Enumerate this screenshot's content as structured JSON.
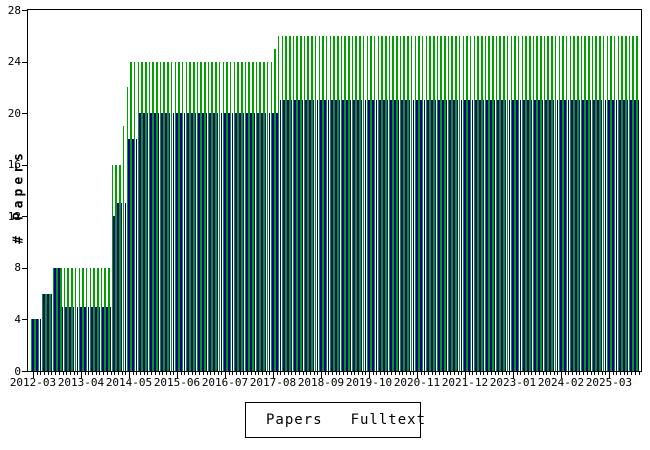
{
  "chart_data": {
    "type": "bar",
    "title": "",
    "ylabel": "# Papers",
    "ylim": [
      0,
      28
    ],
    "yticks": [
      0,
      4,
      8,
      12,
      16,
      20,
      24,
      28
    ],
    "x_unit": "month",
    "x_start": "2012-03",
    "x_end": "2025-11",
    "x_months_per_tick": 13,
    "x_tick_labels": [
      "2012-03",
      "2013-04",
      "2014-05",
      "2015-06",
      "2016-07",
      "2017-08",
      "2018-09",
      "2019-10",
      "2020-11",
      "2021-12",
      "2023-01",
      "2024-02",
      "2025-03"
    ],
    "grid": false,
    "legend_position": "bottom",
    "colors": {
      "papers": "#00a000",
      "fulltext": "#000099",
      "axis": "#000000",
      "background": "#ffffff"
    },
    "series": [
      {
        "name": "Papers",
        "color": "#00a000",
        "values": [
          4,
          4,
          4,
          6,
          6,
          6,
          8,
          8,
          8,
          8,
          8,
          8,
          8,
          8,
          8,
          8,
          8,
          8,
          8,
          8,
          8,
          8,
          16,
          16,
          16,
          19,
          22,
          24,
          24,
          24,
          24,
          24,
          24,
          24,
          24,
          24,
          24,
          24,
          24,
          24,
          24,
          24,
          24,
          24,
          24,
          24,
          24,
          24,
          24,
          24,
          24,
          24,
          24,
          24,
          24,
          24,
          24,
          24,
          24,
          24,
          24,
          24,
          24,
          24,
          24,
          24,
          25,
          26,
          26,
          26,
          26,
          26,
          26,
          26,
          26,
          26,
          26,
          26,
          26,
          26,
          26,
          26,
          26,
          26,
          26,
          26,
          26,
          26,
          26,
          26,
          26,
          26,
          26,
          26,
          26,
          26,
          26,
          26,
          26,
          26,
          26,
          26,
          26,
          26,
          26,
          26,
          26,
          26,
          26,
          26,
          26,
          26,
          26,
          26,
          26,
          26,
          26,
          26,
          26,
          26,
          26,
          26,
          26,
          26,
          26,
          26,
          26,
          26,
          26,
          26,
          26,
          26,
          26,
          26,
          26,
          26,
          26,
          26,
          26,
          26,
          26,
          26,
          26,
          26,
          26,
          26,
          26,
          26,
          26,
          26,
          26,
          26,
          26,
          26,
          26,
          26,
          26,
          26,
          26,
          26,
          26,
          26,
          26,
          26,
          26
        ]
      },
      {
        "name": "Fulltext",
        "color": "#000099",
        "values": [
          4,
          4,
          4,
          6,
          6,
          6,
          8,
          8,
          5,
          5,
          5,
          5,
          5,
          5,
          5,
          5,
          5,
          5,
          5,
          5,
          5,
          5,
          12,
          13,
          13,
          13,
          18,
          18,
          18,
          20,
          20,
          20,
          20,
          20,
          20,
          20,
          20,
          20,
          20,
          20,
          20,
          20,
          20,
          20,
          20,
          20,
          20,
          20,
          20,
          20,
          20,
          20,
          20,
          20,
          20,
          20,
          20,
          20,
          20,
          20,
          20,
          20,
          20,
          20,
          20,
          20,
          20,
          21,
          21,
          21,
          21,
          21,
          21,
          21,
          21,
          21,
          21,
          21,
          21,
          21,
          21,
          21,
          21,
          21,
          21,
          21,
          21,
          21,
          21,
          21,
          21,
          21,
          21,
          21,
          21,
          21,
          21,
          21,
          21,
          21,
          21,
          21,
          21,
          21,
          21,
          21,
          21,
          21,
          21,
          21,
          21,
          21,
          21,
          21,
          21,
          21,
          21,
          21,
          21,
          21,
          21,
          21,
          21,
          21,
          21,
          21,
          21,
          21,
          21,
          21,
          21,
          21,
          21,
          21,
          21,
          21,
          21,
          21,
          21,
          21,
          21,
          21,
          21,
          21,
          21,
          21,
          21,
          21,
          21,
          21,
          21,
          21,
          21,
          21,
          21,
          21,
          21,
          21,
          21,
          21,
          21,
          21,
          21,
          21,
          21
        ]
      }
    ]
  }
}
